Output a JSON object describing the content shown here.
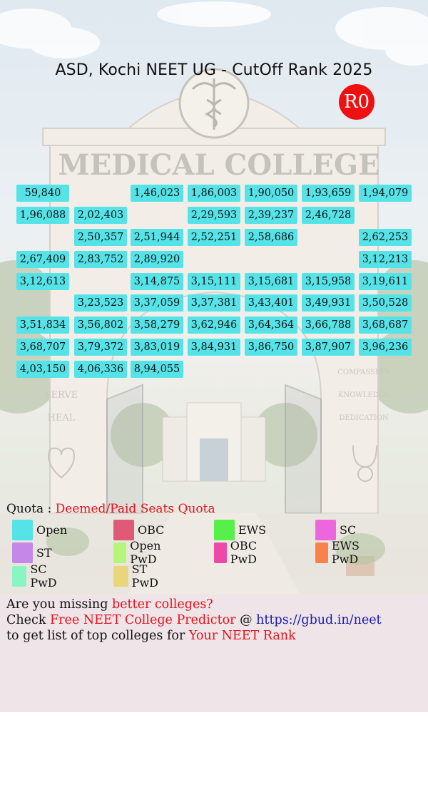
{
  "title": "ASD, Kochi NEET UG - CutOff Rank 2025",
  "round_badge": "R0",
  "background": {
    "college_sign": "MEDICAL COLLEGE",
    "left_pillar": [
      "SERVE",
      "HEAL"
    ],
    "right_pillar": [
      "COMPASSION",
      "KNOWLEDGE",
      "DEDICATION"
    ]
  },
  "ranks": [
    [
      "59,840",
      "",
      "1,46,023",
      "1,86,003",
      "1,90,050",
      "1,93,659",
      "1,94,079"
    ],
    [
      "1,96,088",
      "2,02,403",
      "",
      "2,29,593",
      "2,39,237",
      "2,46,728",
      ""
    ],
    [
      "",
      "2,50,357",
      "2,51,944",
      "2,52,251",
      "2,58,686",
      "",
      "2,62,253"
    ],
    [
      "2,67,409",
      "2,83,752",
      "2,89,920",
      "",
      "",
      "",
      "3,12,213"
    ],
    [
      "3,12,613",
      "",
      "3,14,875",
      "3,15,111",
      "3,15,681",
      "3,15,958",
      "3,19,611"
    ],
    [
      "",
      "3,23,523",
      "3,37,059",
      "3,37,381",
      "3,43,401",
      "3,49,931",
      "3,50,528"
    ],
    [
      "3,51,834",
      "3,56,802",
      "3,58,279",
      "3,62,946",
      "3,64,364",
      "3,66,788",
      "3,68,687"
    ],
    [
      "3,68,707",
      "3,79,372",
      "3,83,019",
      "3,84,931",
      "3,86,750",
      "3,87,907",
      "3,96,236"
    ],
    [
      "4,03,150",
      "4,06,336",
      "8,94,055",
      "",
      "",
      "",
      ""
    ]
  ],
  "quota": {
    "label": "Quota : ",
    "value": "Deemed/Paid Seats Quota"
  },
  "legend": [
    {
      "label": "Open",
      "color": "#55e3e8"
    },
    {
      "label": "OBC",
      "color": "#e05a75"
    },
    {
      "label": "EWS",
      "color": "#55f04a"
    },
    {
      "label": "SC",
      "color": "#ee66dd"
    },
    {
      "label": "ST",
      "color": "#c588e8"
    },
    {
      "label": "Open PwD",
      "color": "#b5f57a"
    },
    {
      "label": "OBC PwD",
      "color": "#ee4aa5"
    },
    {
      "label": "EWS PwD",
      "color": "#f7824a"
    },
    {
      "label": "SC PwD",
      "color": "#88f5c2"
    },
    {
      "label": "ST PwD",
      "color": "#e9d57a"
    }
  ],
  "promo": {
    "line1_a": "Are you missing ",
    "line1_b": "better colleges?",
    "line2_a": "Check ",
    "line2_b": "Free NEET College Predictor",
    "line2_c": " @ ",
    "line2_link": "https://gbud.in/neet",
    "line3_a": "to get list of top colleges for ",
    "line3_b": "Your NEET Rank"
  }
}
